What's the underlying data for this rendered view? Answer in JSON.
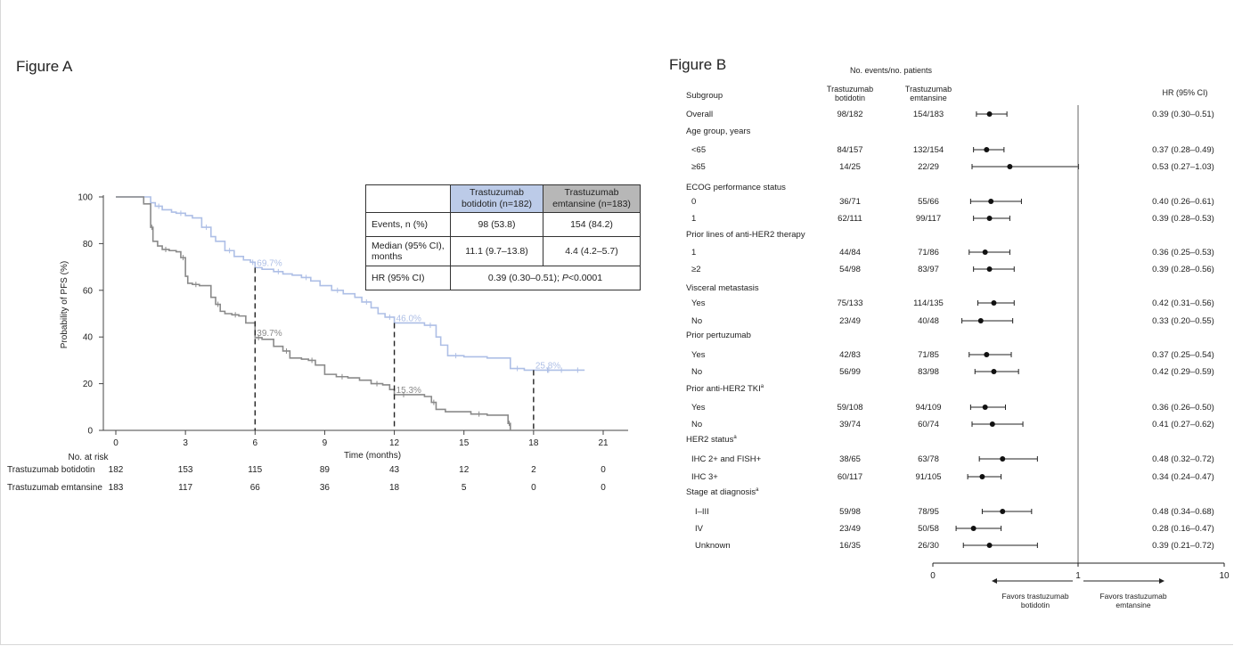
{
  "figA": {
    "title": "Figure A",
    "ylabel": "Probability of PFS (%)",
    "xlabel": "Time (months)",
    "at_risk_header": "No. at risk",
    "table": {
      "col_bot": "Trastuzumab botidotin (n=182)",
      "col_emt": "Trastuzumab emtansine (n=183)",
      "rows": [
        {
          "label": "Events, n (%)",
          "bot": "98 (53.8)",
          "emt": "154 (84.2)"
        },
        {
          "label": "Median (95% CI), months",
          "bot": "11.1 (9.7–13.8)",
          "emt": "4.4 (4.2–5.7)"
        }
      ],
      "hr_label": "HR (95% CI)",
      "hr_value": "0.39 (0.30–0.51); ",
      "hr_p": "P",
      "hr_pval": "<0.0001"
    }
  },
  "chart_data": [
    {
      "type": "line",
      "xlim": [
        0,
        21
      ],
      "ylim": [
        0,
        100
      ],
      "xticks": [
        "0",
        "3",
        "6",
        "9",
        "12",
        "15",
        "18",
        "21"
      ],
      "yticks": [
        "0",
        "20",
        "40",
        "60",
        "80",
        "100"
      ],
      "series": [
        {
          "name": "Trastuzumab botidotin",
          "color": "#aebfe6",
          "x": [
            0,
            1.5,
            1.7,
            2.0,
            2.4,
            2.6,
            3.0,
            3.3,
            3.7,
            4.1,
            4.3,
            4.7,
            5.1,
            5.5,
            5.8,
            6.0,
            6.3,
            6.8,
            7.2,
            7.6,
            8.0,
            8.4,
            8.8,
            9.3,
            9.8,
            10.3,
            10.6,
            11.0,
            11.3,
            11.6,
            12.0,
            12.7,
            13.3,
            13.8,
            14.0,
            14.3,
            15.0,
            16.0,
            17.0,
            17.6,
            18.0,
            18.3,
            19.0,
            19.6
          ],
          "y": [
            100,
            97.5,
            96,
            94.5,
            93.5,
            93,
            92,
            91,
            87,
            83,
            81,
            77,
            74.5,
            73,
            72,
            69.7,
            69,
            68,
            67,
            66.5,
            65.5,
            64,
            62,
            60,
            58.5,
            57,
            55,
            52.5,
            50,
            48.5,
            46,
            46,
            45,
            40,
            36.5,
            32,
            31.5,
            31,
            26.5,
            25.8,
            25.8,
            25.8,
            25.8,
            25.8
          ],
          "label_points": [
            {
              "x": 6,
              "y": 69.7,
              "label": "69.7%"
            },
            {
              "x": 12,
              "y": 46.0,
              "label": "46.0%"
            },
            {
              "x": 18,
              "y": 25.8,
              "label": "25.8%"
            }
          ]
        },
        {
          "name": "Trastuzumab emtansine",
          "color": "#8a8a8a",
          "x": [
            0,
            1.2,
            1.5,
            1.6,
            1.8,
            2.0,
            2.3,
            2.6,
            2.8,
            3.0,
            3.1,
            3.3,
            3.6,
            4.1,
            4.3,
            4.5,
            4.7,
            5.0,
            5.3,
            5.6,
            6.0,
            6.3,
            6.8,
            7.2,
            7.5,
            8.0,
            8.3,
            8.6,
            9.0,
            9.5,
            10.0,
            10.5,
            11.0,
            11.5,
            11.8,
            12.0,
            12.8,
            13.3,
            13.6,
            13.8,
            14.2,
            15.3,
            16.0,
            16.8,
            16.9,
            17.0
          ],
          "y": [
            100,
            97,
            87,
            81,
            79,
            77.5,
            77,
            76.5,
            74,
            66,
            63,
            62.5,
            62,
            57,
            54,
            51,
            50,
            49.5,
            49,
            46,
            39.7,
            39,
            36,
            34,
            31,
            30.5,
            30,
            28,
            24,
            23,
            22.5,
            21.5,
            20,
            19.5,
            17.5,
            15.3,
            15.3,
            14.5,
            12,
            9,
            8,
            7,
            6.5,
            6.5,
            3,
            0
          ],
          "label_points": [
            {
              "x": 6,
              "y": 39.7,
              "label": "39.7%"
            },
            {
              "x": 12,
              "y": 15.3,
              "label": "15.3%"
            }
          ]
        }
      ],
      "at_risk": [
        {
          "name": "Trastuzumab botidotin",
          "values": [
            "182",
            "153",
            "115",
            "89",
            "43",
            "12",
            "2",
            "0"
          ]
        },
        {
          "name": "Trastuzumab emtansine",
          "values": [
            "183",
            "117",
            "66",
            "36",
            "18",
            "5",
            "0",
            "0"
          ]
        }
      ]
    },
    {
      "type": "scatter",
      "title": "Figure B",
      "header_events": "No. events/no. patients",
      "col_subgroup": "Subgroup",
      "col_bot": [
        "Trastuzumab",
        "botidotin"
      ],
      "col_emt": [
        "Trastuzumab",
        "emtansine"
      ],
      "col_hr": "HR (95% CI)",
      "xlim": [
        0,
        10
      ],
      "xticks": [
        "0",
        "1",
        "10"
      ],
      "favors_left": [
        "Favors trastuzumab",
        "botidotin"
      ],
      "favors_right": [
        "Favors trastuzumab",
        "emtansine"
      ],
      "rows": [
        {
          "label": "Overall",
          "indent": 0,
          "bot": "98/182",
          "emt": "154/183",
          "hr": 0.39,
          "lo": 0.3,
          "hi": 0.51,
          "text": "0.39 (0.30–0.51)"
        },
        {
          "label": "Age group, years",
          "header": true
        },
        {
          "label": "<65",
          "indent": 1,
          "bot": "84/157",
          "emt": "132/154",
          "hr": 0.37,
          "lo": 0.28,
          "hi": 0.49,
          "text": "0.37 (0.28–0.49)"
        },
        {
          "label": "≥65",
          "indent": 1,
          "bot": "14/25",
          "emt": "22/29",
          "hr": 0.53,
          "lo": 0.27,
          "hi": 1.03,
          "text": "0.53 (0.27–1.03)"
        },
        {
          "label": "ECOG performance status",
          "header": true
        },
        {
          "label": "0",
          "indent": 1,
          "bot": "36/71",
          "emt": "55/66",
          "hr": 0.4,
          "lo": 0.26,
          "hi": 0.61,
          "text": "0.40 (0.26–0.61)"
        },
        {
          "label": "1",
          "indent": 1,
          "bot": "62/111",
          "emt": "99/117",
          "hr": 0.39,
          "lo": 0.28,
          "hi": 0.53,
          "text": "0.39 (0.28–0.53)"
        },
        {
          "label": "Prior lines of anti-HER2 therapy",
          "header": true
        },
        {
          "label": "1",
          "indent": 1,
          "bot": "44/84",
          "emt": "71/86",
          "hr": 0.36,
          "lo": 0.25,
          "hi": 0.53,
          "text": "0.36 (0.25–0.53)"
        },
        {
          "label": "≥2",
          "indent": 1,
          "bot": "54/98",
          "emt": "83/97",
          "hr": 0.39,
          "lo": 0.28,
          "hi": 0.56,
          "text": "0.39 (0.28–0.56)"
        },
        {
          "label": "Visceral metastasis",
          "header": true
        },
        {
          "label": "Yes",
          "indent": 1,
          "bot": "75/133",
          "emt": "114/135",
          "hr": 0.42,
          "lo": 0.31,
          "hi": 0.56,
          "text": "0.42 (0.31–0.56)"
        },
        {
          "label": "No",
          "indent": 1,
          "bot": "23/49",
          "emt": "40/48",
          "hr": 0.33,
          "lo": 0.2,
          "hi": 0.55,
          "text": "0.33 (0.20–0.55)"
        },
        {
          "label": "Prior pertuzumab",
          "header": true
        },
        {
          "label": "Yes",
          "indent": 1,
          "bot": "42/83",
          "emt": "71/85",
          "hr": 0.37,
          "lo": 0.25,
          "hi": 0.54,
          "text": "0.37 (0.25–0.54)"
        },
        {
          "label": "No",
          "indent": 1,
          "bot": "56/99",
          "emt": "83/98",
          "hr": 0.42,
          "lo": 0.29,
          "hi": 0.59,
          "text": "0.42 (0.29–0.59)"
        },
        {
          "label": "Prior anti-HER2 TKI",
          "sup": "a",
          "header": true
        },
        {
          "label": "Yes",
          "indent": 1,
          "bot": "59/108",
          "emt": "94/109",
          "hr": 0.36,
          "lo": 0.26,
          "hi": 0.5,
          "text": "0.36 (0.26–0.50)"
        },
        {
          "label": "No",
          "indent": 1,
          "bot": "39/74",
          "emt": "60/74",
          "hr": 0.41,
          "lo": 0.27,
          "hi": 0.62,
          "text": "0.41 (0.27–0.62)"
        },
        {
          "label": "HER2 status",
          "sup": "a",
          "header": true
        },
        {
          "label": "IHC 2+ and FISH+",
          "indent": 1,
          "bot": "38/65",
          "emt": "63/78",
          "hr": 0.48,
          "lo": 0.32,
          "hi": 0.72,
          "text": "0.48 (0.32–0.72)"
        },
        {
          "label": "IHC 3+",
          "indent": 1,
          "bot": "60/117",
          "emt": "91/105",
          "hr": 0.34,
          "lo": 0.24,
          "hi": 0.47,
          "text": "0.34 (0.24–0.47)"
        },
        {
          "label": "Stage at diagnosis",
          "sup": "a",
          "header": true
        },
        {
          "label": "I–III",
          "indent": 2,
          "bot": "59/98",
          "emt": "78/95",
          "hr": 0.48,
          "lo": 0.34,
          "hi": 0.68,
          "text": "0.48 (0.34–0.68)"
        },
        {
          "label": "IV",
          "indent": 2,
          "bot": "23/49",
          "emt": "50/58",
          "hr": 0.28,
          "lo": 0.16,
          "hi": 0.47,
          "text": "0.28 (0.16–0.47)"
        },
        {
          "label": "Unknown",
          "indent": 2,
          "bot": "16/35",
          "emt": "26/30",
          "hr": 0.39,
          "lo": 0.21,
          "hi": 0.72,
          "text": "0.39 (0.21–0.72)"
        }
      ]
    }
  ]
}
